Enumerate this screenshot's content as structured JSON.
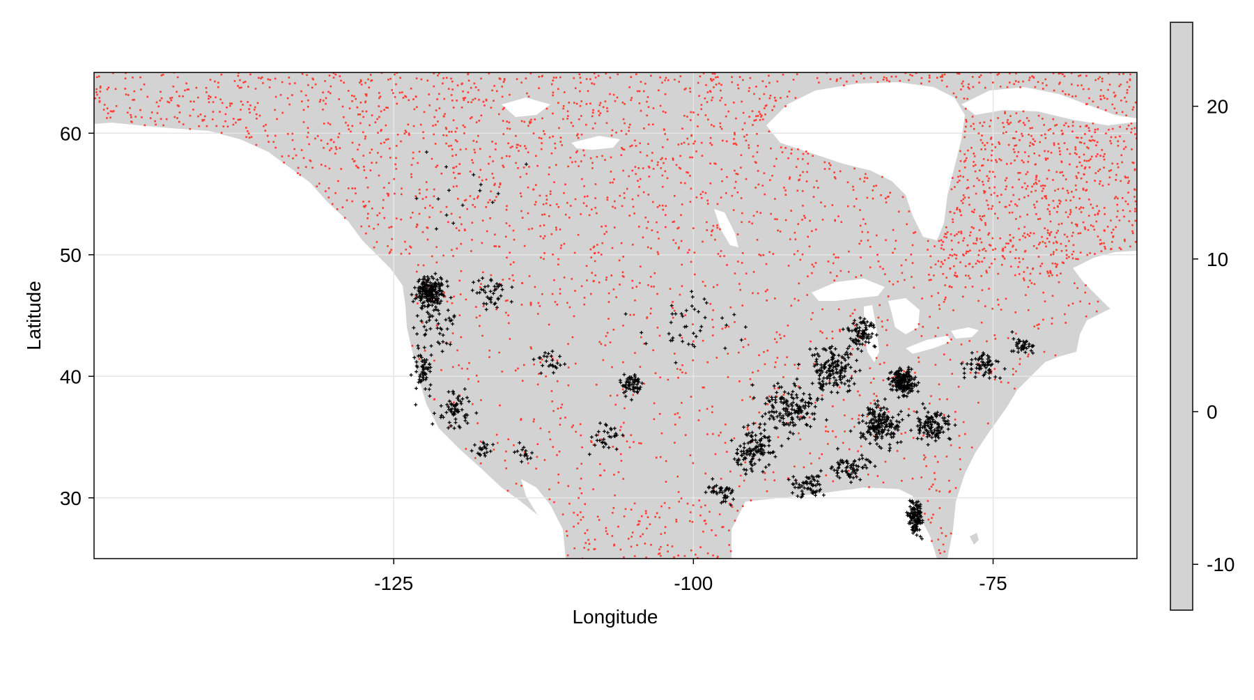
{
  "chart_data": {
    "type": "scatter",
    "title": "",
    "xlabel": "Longitude",
    "ylabel": "Latitude",
    "xlim": [
      -150,
      -63
    ],
    "ylim": [
      25,
      65
    ],
    "xticks": [
      -125,
      -100,
      -75
    ],
    "yticks": [
      30,
      40,
      50,
      60
    ],
    "grid": true,
    "colorbar": {
      "range": [
        -13,
        25.5
      ],
      "ticks": [
        -10,
        0,
        10,
        20
      ],
      "fill_color": "#d3d3d3"
    },
    "land_color": "#d3d3d3",
    "series": [
      {
        "marker": "red-dots",
        "color": "#ff3b30",
        "region": "widespread across grid, densest in northern Canada and northeast Canada (Quebec/Labrador)"
      },
      {
        "marker": "black-plus",
        "color": "#000000",
        "region": "stations concentrated in Pacific Northwest, California, Colorado front range, eastern US and Florida",
        "clusters": [
          {
            "lon": -122.0,
            "lat": 47.0,
            "spread": [
              1.3,
              1.4
            ],
            "n": 190
          },
          {
            "lon": -121.5,
            "lat": 44.5,
            "spread": [
              2.0,
              2.5
            ],
            "n": 50
          },
          {
            "lon": -122.5,
            "lat": 40.5,
            "spread": [
              0.9,
              2.0
            ],
            "n": 55
          },
          {
            "lon": -120.0,
            "lat": 37.0,
            "spread": [
              1.4,
              1.8
            ],
            "n": 65
          },
          {
            "lon": -117.5,
            "lat": 34.0,
            "spread": [
              1.0,
              0.7
            ],
            "n": 20
          },
          {
            "lon": -117.0,
            "lat": 47.0,
            "spread": [
              2.0,
              1.2
            ],
            "n": 40
          },
          {
            "lon": -112.0,
            "lat": 41.0,
            "spread": [
              1.5,
              1.2
            ],
            "n": 25
          },
          {
            "lon": -105.2,
            "lat": 39.3,
            "spread": [
              0.9,
              1.1
            ],
            "n": 60
          },
          {
            "lon": -97.5,
            "lat": 30.5,
            "spread": [
              1.5,
              1.2
            ],
            "n": 40
          },
          {
            "lon": -95.0,
            "lat": 34.0,
            "spread": [
              2.0,
              2.0
            ],
            "n": 120
          },
          {
            "lon": -92.0,
            "lat": 37.5,
            "spread": [
              2.5,
              2.5
            ],
            "n": 150
          },
          {
            "lon": -88.5,
            "lat": 40.5,
            "spread": [
              2.0,
              2.0
            ],
            "n": 150
          },
          {
            "lon": -86.0,
            "lat": 43.5,
            "spread": [
              1.3,
              1.5
            ],
            "n": 80
          },
          {
            "lon": -84.5,
            "lat": 36.0,
            "spread": [
              2.0,
              2.0
            ],
            "n": 170
          },
          {
            "lon": -82.5,
            "lat": 39.5,
            "spread": [
              1.2,
              1.3
            ],
            "n": 180
          },
          {
            "lon": -80.0,
            "lat": 36.0,
            "spread": [
              1.8,
              1.5
            ],
            "n": 110
          },
          {
            "lon": -76.0,
            "lat": 41.0,
            "spread": [
              1.5,
              1.2
            ],
            "n": 60
          },
          {
            "lon": -72.5,
            "lat": 42.5,
            "spread": [
              1.0,
              0.8
            ],
            "n": 35
          },
          {
            "lon": -81.5,
            "lat": 28.5,
            "spread": [
              0.7,
              1.6
            ],
            "n": 120
          },
          {
            "lon": -87.0,
            "lat": 32.5,
            "spread": [
              2.0,
              1.2
            ],
            "n": 70
          },
          {
            "lon": -90.5,
            "lat": 31.0,
            "spread": [
              1.5,
              1.0
            ],
            "n": 60
          },
          {
            "lon": -114.0,
            "lat": 33.5,
            "spread": [
              1.0,
              0.8
            ],
            "n": 15
          },
          {
            "lon": -107.5,
            "lat": 35.0,
            "spread": [
              1.5,
              1.5
            ],
            "n": 30
          },
          {
            "lon": -100.0,
            "lat": 44.0,
            "spread": [
              5.0,
              3.0
            ],
            "n": 40
          },
          {
            "lon": -118.0,
            "lat": 55.0,
            "spread": [
              6.0,
              4.0
            ],
            "n": 15
          }
        ]
      }
    ]
  }
}
